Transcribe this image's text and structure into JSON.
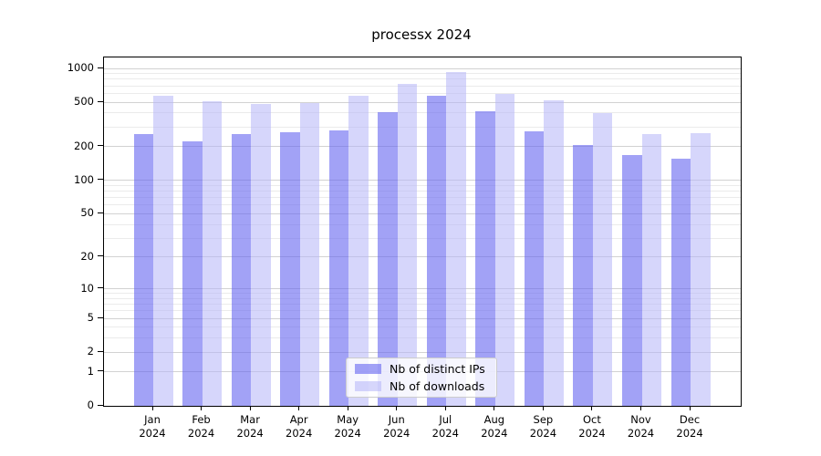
{
  "title": "processx 2024",
  "chart_data": {
    "type": "bar",
    "title": "processx 2024",
    "categories": [
      "Jan",
      "Feb",
      "Mar",
      "Apr",
      "May",
      "Jun",
      "Jul",
      "Aug",
      "Sep",
      "Oct",
      "Nov",
      "Dec"
    ],
    "year_label": "2024",
    "series": [
      {
        "name": "Nb of distinct IPs",
        "color": "#6464f0",
        "alpha": 0.6,
        "values": [
          260,
          223,
          262,
          270,
          280,
          406,
          570,
          417,
          277,
          207,
          170,
          157
        ]
      },
      {
        "name": "Nb of downloads",
        "color": "#b4b4f8",
        "alpha": 0.55,
        "values": [
          570,
          514,
          485,
          494,
          575,
          727,
          922,
          588,
          515,
          400,
          260,
          265
        ]
      }
    ],
    "xlabel": "",
    "ylabel": "",
    "yscale": "log1p",
    "ylim": [
      0,
      1250
    ],
    "y_ticks": [
      0,
      1,
      2,
      5,
      10,
      20,
      50,
      100,
      200,
      500,
      1000
    ],
    "y_minor_ticks": [
      3,
      4,
      6,
      7,
      8,
      9,
      30,
      40,
      60,
      70,
      80,
      90,
      300,
      400,
      600,
      700,
      800,
      900
    ],
    "grid": true,
    "legend_position": "lower-center"
  },
  "legend": {
    "items": [
      {
        "label": "Nb of distinct IPs"
      },
      {
        "label": "Nb of downloads"
      }
    ]
  },
  "colors": {
    "background": "#ffffff",
    "spine": "#000000",
    "grid_major": "#d2d2d2",
    "grid_minor": "#ebebeb",
    "bar_dark": "#a2a2f4",
    "bar_light": "#d8d8f8"
  }
}
